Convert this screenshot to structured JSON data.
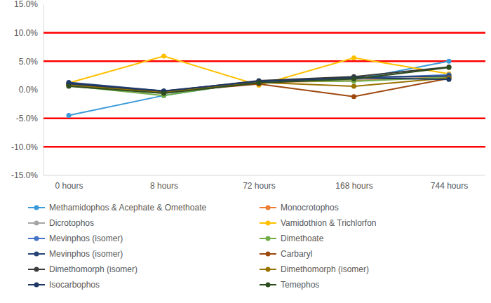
{
  "chart_data": {
    "type": "line",
    "categories": [
      "0 hours",
      "8 hours",
      "72 hours",
      "168 hours",
      "744 hours"
    ],
    "ylim": [
      -15,
      15
    ],
    "yticks": [
      {
        "value": -15,
        "label": "-15.0%"
      },
      {
        "value": -10,
        "label": "-10.0%"
      },
      {
        "value": -5,
        "label": "-5.0%"
      },
      {
        "value": 0,
        "label": "0.0%"
      },
      {
        "value": 5,
        "label": "5.0%"
      },
      {
        "value": 10,
        "label": "10.0%"
      },
      {
        "value": 15,
        "label": "15.0%"
      }
    ],
    "grid": false,
    "legend": "bottom",
    "marker": "circle",
    "reference_lines": [
      {
        "value": 10,
        "color": "#ff0000"
      },
      {
        "value": 5,
        "color": "#ff0000"
      },
      {
        "value": -5,
        "color": "#ff0000"
      },
      {
        "value": -10,
        "color": "#ff0000"
      }
    ],
    "series": [
      {
        "name": "Methamidophos & Acephate & Omethoate",
        "color": "#3a9ad9",
        "values": [
          -4.5,
          -1.0,
          1.5,
          1.8,
          5.0
        ]
      },
      {
        "name": "Monocrotophos",
        "color": "#ed7d31",
        "values": [
          0.8,
          -0.5,
          1.3,
          1.6,
          2.3
        ]
      },
      {
        "name": "Dicrotophos",
        "color": "#a5a5a5",
        "values": [
          0.9,
          -0.6,
          1.4,
          1.8,
          2.5
        ]
      },
      {
        "name": "Vamidothion & Trichlorfon",
        "color": "#ffc000",
        "values": [
          1.2,
          5.9,
          0.8,
          5.6,
          2.8
        ]
      },
      {
        "name": "Mevinphos (isomer)",
        "color": "#4472c4",
        "values": [
          1.0,
          -0.3,
          1.5,
          2.0,
          2.6
        ]
      },
      {
        "name": "Dimethoate",
        "color": "#70ad47",
        "values": [
          0.7,
          -1.0,
          1.5,
          1.5,
          2.2
        ]
      },
      {
        "name": "Mevinphos (isomer)",
        "color": "#264478",
        "values": [
          1.3,
          -0.2,
          1.4,
          2.2,
          2.4
        ]
      },
      {
        "name": "Carbaryl",
        "color": "#9e480e",
        "values": [
          0.8,
          -0.4,
          1.0,
          -1.2,
          2.0
        ]
      },
      {
        "name": "Dimethomorph (isomer)",
        "color": "#3b3b3b",
        "values": [
          0.9,
          -0.3,
          1.6,
          2.3,
          4.0
        ]
      },
      {
        "name": "Dimethomorph (isomer)",
        "color": "#997300",
        "values": [
          0.8,
          -0.5,
          1.3,
          0.6,
          2.1
        ]
      },
      {
        "name": "Isocarbophos",
        "color": "#1f3864",
        "values": [
          1.1,
          -0.2,
          1.5,
          2.1,
          1.8
        ]
      },
      {
        "name": "Temephos",
        "color": "#2e4d1f",
        "values": [
          0.6,
          -0.6,
          1.2,
          1.9,
          3.9
        ]
      }
    ]
  }
}
